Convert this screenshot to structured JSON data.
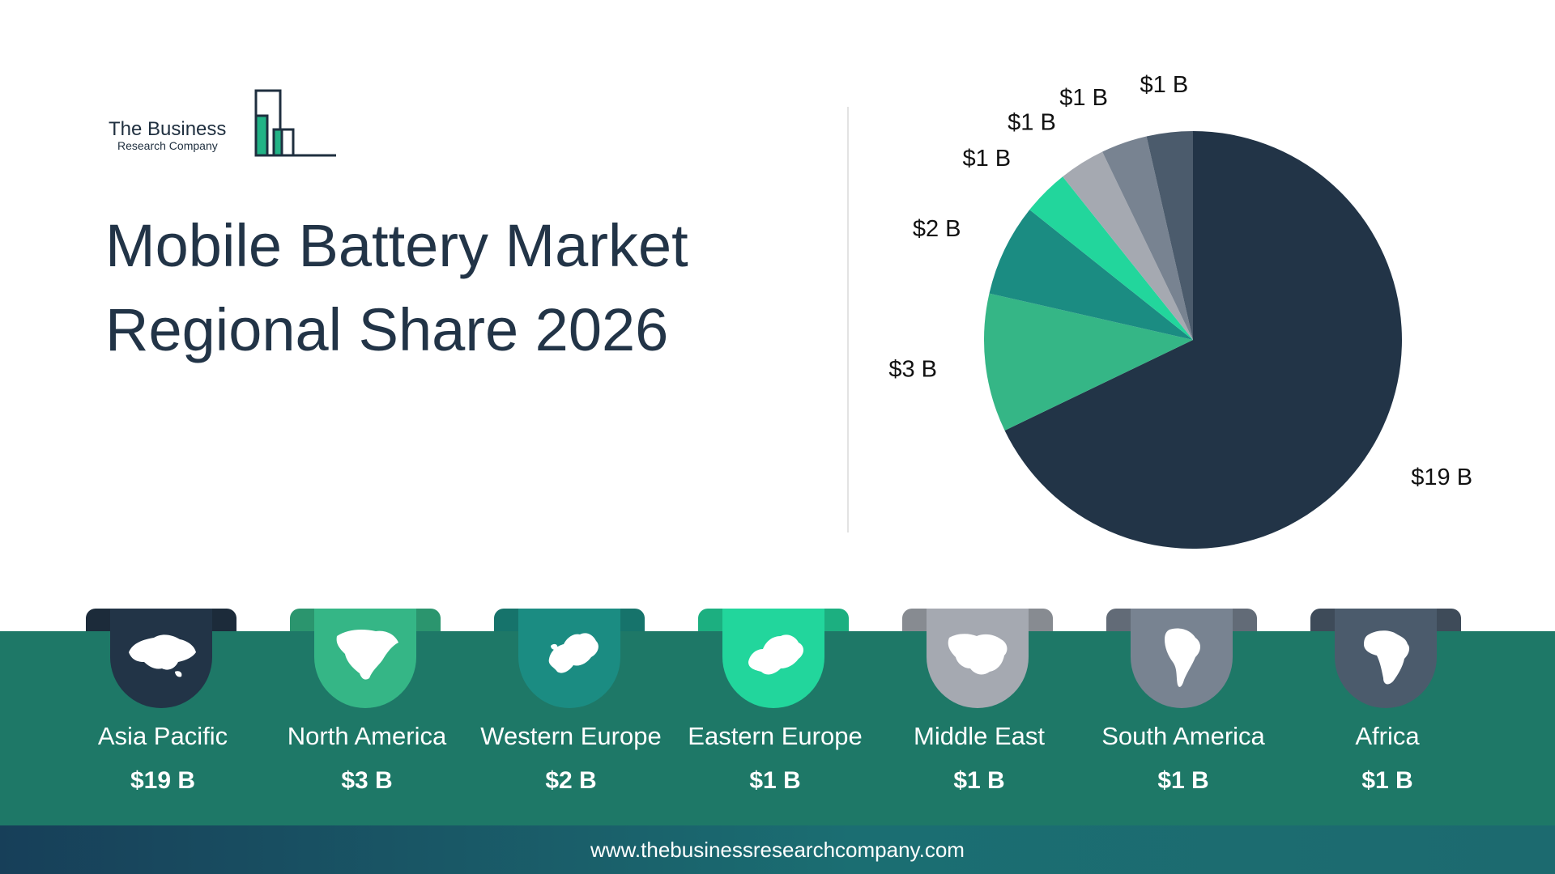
{
  "logo": {
    "name": "The Business",
    "sub": "Research Company"
  },
  "title": {
    "line1": "Mobile Battery Market",
    "line2": "Regional Share 2026"
  },
  "chart_data": {
    "type": "pie",
    "title": "Mobile Battery Market Regional Share 2026",
    "unit": "$ B",
    "slices": [
      {
        "label": "Asia Pacific",
        "value": 19,
        "display": "$19 B",
        "color": "#223447"
      },
      {
        "label": "North America",
        "value": 3,
        "display": "$3 B",
        "color": "#35b686"
      },
      {
        "label": "Western Europe",
        "value": 2,
        "display": "$2 B",
        "color": "#1b8c82"
      },
      {
        "label": "Eastern Europe",
        "value": 1,
        "display": "$1 B",
        "color": "#22d69c"
      },
      {
        "label": "Middle East",
        "value": 1,
        "display": "$1 B",
        "color": "#a5a9b1"
      },
      {
        "label": "South America",
        "value": 1,
        "display": "$1 B",
        "color": "#788391"
      },
      {
        "label": "Africa",
        "value": 1,
        "display": "$1 B",
        "color": "#4b5b6c"
      }
    ]
  },
  "regions": [
    {
      "name": "Asia Pacific",
      "value": "$19 B",
      "color": "#223447",
      "icon": "asia-map-icon"
    },
    {
      "name": "North America",
      "value": "$3 B",
      "color": "#35b686",
      "icon": "north-america-map-icon"
    },
    {
      "name": "Western Europe",
      "value": "$2 B",
      "color": "#1b8c82",
      "icon": "western-europe-map-icon"
    },
    {
      "name": "Eastern Europe",
      "value": "$1 B",
      "color": "#22d69c",
      "icon": "eastern-europe-map-icon"
    },
    {
      "name": "Middle East",
      "value": "$1 B",
      "color": "#a5a9b1",
      "icon": "middle-east-map-icon"
    },
    {
      "name": "South America",
      "value": "$1 B",
      "color": "#788391",
      "icon": "south-america-map-icon"
    },
    {
      "name": "Africa",
      "value": "$1 B",
      "color": "#4b5b6c",
      "icon": "africa-map-icon"
    }
  ],
  "footer": {
    "url": "www.thebusinessresearchcompany.com"
  }
}
